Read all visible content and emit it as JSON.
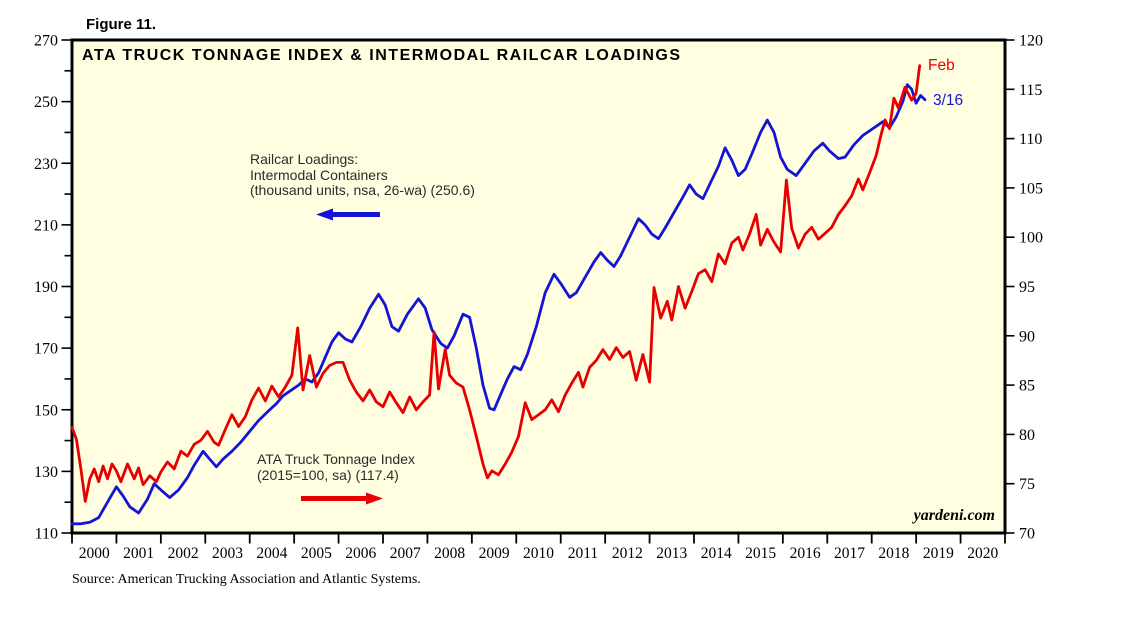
{
  "figure_label": "Figure 11.",
  "title": "ATA TRUCK TONNAGE INDEX & INTERMODAL RAILCAR LOADINGS",
  "watermark": "yardeni.com",
  "source_note": "Source: American Trucking Association and Atlantic Systems.",
  "colors": {
    "plot_background": "#fffee1",
    "border": "#000000",
    "railcar_line": "#1414d6",
    "truck_line": "#e80000",
    "axis_text": "#000000",
    "annotation_text": "#2b2b2b"
  },
  "annotations": {
    "railcar_label": {
      "line1": "Railcar Loadings:",
      "line2": "Intermodal Containers",
      "line3": "(thousand units, nsa, 26-wa) (250.6)"
    },
    "truck_label": {
      "line1": "ATA Truck Tonnage Index",
      "line2": "(2015=100, sa) (117.4)"
    },
    "feb_label": "Feb",
    "date_label": "3/16"
  },
  "chart_data": {
    "type": "line",
    "title": "ATA TRUCK TONNAGE INDEX & INTERMODAL RAILCAR LOADINGS",
    "grid": false,
    "legend_position": "in-plot annotations with arrows",
    "x_axis": {
      "start": 2000,
      "end": 2021,
      "tick_labels": [
        "2000",
        "2001",
        "2002",
        "2003",
        "2004",
        "2005",
        "2006",
        "2007",
        "2008",
        "2009",
        "2010",
        "2011",
        "2012",
        "2013",
        "2014",
        "2015",
        "2016",
        "2017",
        "2018",
        "2019",
        "2020"
      ]
    },
    "left_axis": {
      "min": 110,
      "max": 270,
      "label_step": 20,
      "minor_step": 10,
      "labels": [
        270,
        250,
        230,
        210,
        190,
        170,
        150,
        130,
        110
      ],
      "series": "Railcar Loadings: Intermodal Containers (thousand units)"
    },
    "right_axis": {
      "min": 70,
      "max": 120,
      "label_step": 5,
      "labels": [
        120,
        115,
        110,
        105,
        100,
        95,
        90,
        85,
        80,
        75,
        70
      ],
      "series": "ATA Truck Tonnage Index (2015=100, sa)"
    },
    "series": [
      {
        "key": "railcar",
        "name": "Railcar Loadings: Intermodal Containers (thousand units, nsa, 26-wa)",
        "axis": "left",
        "color": "#1414d6",
        "latest_label": "3/16",
        "latest_value": 250.6,
        "points": [
          [
            2000.0,
            113
          ],
          [
            2000.2,
            113
          ],
          [
            2000.4,
            113.5
          ],
          [
            2000.6,
            115
          ],
          [
            2000.8,
            120
          ],
          [
            2001.0,
            125
          ],
          [
            2001.15,
            122
          ],
          [
            2001.3,
            118.5
          ],
          [
            2001.5,
            116.5
          ],
          [
            2001.7,
            121
          ],
          [
            2001.85,
            126
          ],
          [
            2002.0,
            124
          ],
          [
            2002.2,
            121.5
          ],
          [
            2002.4,
            124
          ],
          [
            2002.6,
            128
          ],
          [
            2002.75,
            132
          ],
          [
            2002.95,
            136.5
          ],
          [
            2003.1,
            134
          ],
          [
            2003.25,
            131.5
          ],
          [
            2003.4,
            134
          ],
          [
            2003.6,
            136.5
          ],
          [
            2003.8,
            139.5
          ],
          [
            2004.0,
            143
          ],
          [
            2004.2,
            146.5
          ],
          [
            2004.45,
            150
          ],
          [
            2004.6,
            152
          ],
          [
            2004.75,
            154.5
          ],
          [
            2004.95,
            156.5
          ],
          [
            2005.1,
            158
          ],
          [
            2005.25,
            160
          ],
          [
            2005.4,
            159
          ],
          [
            2005.55,
            162
          ],
          [
            2005.7,
            167
          ],
          [
            2005.85,
            172
          ],
          [
            2006.0,
            175
          ],
          [
            2006.15,
            173
          ],
          [
            2006.3,
            172
          ],
          [
            2006.5,
            177
          ],
          [
            2006.7,
            183
          ],
          [
            2006.9,
            187.5
          ],
          [
            2007.05,
            184
          ],
          [
            2007.2,
            177
          ],
          [
            2007.35,
            175.5
          ],
          [
            2007.55,
            181
          ],
          [
            2007.8,
            186
          ],
          [
            2007.95,
            183
          ],
          [
            2008.1,
            176
          ],
          [
            2008.3,
            171.5
          ],
          [
            2008.45,
            170
          ],
          [
            2008.6,
            174
          ],
          [
            2008.8,
            181
          ],
          [
            2008.95,
            180
          ],
          [
            2009.1,
            170
          ],
          [
            2009.25,
            158
          ],
          [
            2009.4,
            150.5
          ],
          [
            2009.5,
            150
          ],
          [
            2009.65,
            155
          ],
          [
            2009.8,
            160
          ],
          [
            2009.95,
            164
          ],
          [
            2010.1,
            163
          ],
          [
            2010.25,
            168
          ],
          [
            2010.45,
            177
          ],
          [
            2010.65,
            188
          ],
          [
            2010.85,
            194
          ],
          [
            2011.0,
            191
          ],
          [
            2011.2,
            186.5
          ],
          [
            2011.35,
            188
          ],
          [
            2011.55,
            193
          ],
          [
            2011.75,
            198
          ],
          [
            2011.9,
            201
          ],
          [
            2012.05,
            198.5
          ],
          [
            2012.2,
            196.5
          ],
          [
            2012.35,
            200
          ],
          [
            2012.55,
            206
          ],
          [
            2012.75,
            212
          ],
          [
            2012.9,
            210
          ],
          [
            2013.05,
            207
          ],
          [
            2013.2,
            205.5
          ],
          [
            2013.35,
            209
          ],
          [
            2013.55,
            214
          ],
          [
            2013.75,
            219
          ],
          [
            2013.9,
            223
          ],
          [
            2014.05,
            220
          ],
          [
            2014.2,
            218.5
          ],
          [
            2014.35,
            223
          ],
          [
            2014.55,
            229
          ],
          [
            2014.7,
            235
          ],
          [
            2014.85,
            231
          ],
          [
            2015.0,
            226
          ],
          [
            2015.15,
            228
          ],
          [
            2015.3,
            233
          ],
          [
            2015.5,
            240
          ],
          [
            2015.65,
            244
          ],
          [
            2015.8,
            240
          ],
          [
            2015.95,
            232
          ],
          [
            2016.1,
            228
          ],
          [
            2016.3,
            226
          ],
          [
            2016.5,
            230
          ],
          [
            2016.7,
            234
          ],
          [
            2016.9,
            236.5
          ],
          [
            2017.05,
            234
          ],
          [
            2017.25,
            231.5
          ],
          [
            2017.4,
            232
          ],
          [
            2017.6,
            236
          ],
          [
            2017.8,
            239
          ],
          [
            2017.95,
            240.5
          ],
          [
            2018.1,
            242
          ],
          [
            2018.25,
            243.5
          ],
          [
            2018.4,
            241.5
          ],
          [
            2018.55,
            245
          ],
          [
            2018.7,
            250
          ],
          [
            2018.8,
            255.5
          ],
          [
            2018.9,
            254
          ],
          [
            2019.0,
            249.5
          ],
          [
            2019.1,
            252
          ],
          [
            2019.2,
            250.6
          ]
        ]
      },
      {
        "key": "truck",
        "name": "ATA Truck Tonnage Index (2015=100, sa)",
        "axis": "right",
        "color": "#e80000",
        "latest_label": "Feb",
        "latest_value": 117.4,
        "points": [
          [
            2000.0,
            80.7
          ],
          [
            2000.1,
            79.5
          ],
          [
            2000.2,
            76.5
          ],
          [
            2000.3,
            73.2
          ],
          [
            2000.4,
            75.5
          ],
          [
            2000.5,
            76.5
          ],
          [
            2000.6,
            75.2
          ],
          [
            2000.7,
            76.8
          ],
          [
            2000.8,
            75.5
          ],
          [
            2000.9,
            77
          ],
          [
            2001.0,
            76.3
          ],
          [
            2001.1,
            75.2
          ],
          [
            2001.25,
            77
          ],
          [
            2001.4,
            75.5
          ],
          [
            2001.5,
            76.6
          ],
          [
            2001.6,
            74.9
          ],
          [
            2001.75,
            75.8
          ],
          [
            2001.9,
            75.2
          ],
          [
            2002.0,
            76.2
          ],
          [
            2002.15,
            77.2
          ],
          [
            2002.3,
            76.5
          ],
          [
            2002.45,
            78.3
          ],
          [
            2002.6,
            77.8
          ],
          [
            2002.75,
            79
          ],
          [
            2002.9,
            79.4
          ],
          [
            2003.05,
            80.3
          ],
          [
            2003.2,
            79.2
          ],
          [
            2003.3,
            78.9
          ],
          [
            2003.45,
            80.5
          ],
          [
            2003.6,
            82
          ],
          [
            2003.75,
            80.8
          ],
          [
            2003.9,
            81.8
          ],
          [
            2004.05,
            83.5
          ],
          [
            2004.2,
            84.7
          ],
          [
            2004.35,
            83.4
          ],
          [
            2004.5,
            84.9
          ],
          [
            2004.65,
            83.8
          ],
          [
            2004.8,
            84.8
          ],
          [
            2004.95,
            86
          ],
          [
            2005.08,
            90.8
          ],
          [
            2005.2,
            84.5
          ],
          [
            2005.35,
            88
          ],
          [
            2005.5,
            84.8
          ],
          [
            2005.65,
            86.2
          ],
          [
            2005.8,
            87
          ],
          [
            2005.95,
            87.3
          ],
          [
            2006.1,
            87.3
          ],
          [
            2006.25,
            85.5
          ],
          [
            2006.4,
            84.3
          ],
          [
            2006.55,
            83.4
          ],
          [
            2006.7,
            84.5
          ],
          [
            2006.85,
            83.3
          ],
          [
            2007.0,
            82.8
          ],
          [
            2007.15,
            84.3
          ],
          [
            2007.3,
            83.2
          ],
          [
            2007.45,
            82.2
          ],
          [
            2007.6,
            83.8
          ],
          [
            2007.75,
            82.5
          ],
          [
            2007.9,
            83.3
          ],
          [
            2008.05,
            84
          ],
          [
            2008.15,
            90.4
          ],
          [
            2008.25,
            84.6
          ],
          [
            2008.4,
            88.6
          ],
          [
            2008.5,
            86
          ],
          [
            2008.65,
            85.2
          ],
          [
            2008.8,
            84.8
          ],
          [
            2008.95,
            82.5
          ],
          [
            2009.1,
            79.8
          ],
          [
            2009.25,
            77
          ],
          [
            2009.35,
            75.6
          ],
          [
            2009.45,
            76.3
          ],
          [
            2009.6,
            75.9
          ],
          [
            2009.75,
            77
          ],
          [
            2009.9,
            78.2
          ],
          [
            2010.05,
            79.8
          ],
          [
            2010.2,
            83.2
          ],
          [
            2010.35,
            81.5
          ],
          [
            2010.5,
            82
          ],
          [
            2010.65,
            82.5
          ],
          [
            2010.8,
            83.5
          ],
          [
            2010.95,
            82.3
          ],
          [
            2011.1,
            84
          ],
          [
            2011.25,
            85.2
          ],
          [
            2011.4,
            86.3
          ],
          [
            2011.5,
            84.8
          ],
          [
            2011.65,
            86.8
          ],
          [
            2011.8,
            87.5
          ],
          [
            2011.95,
            88.6
          ],
          [
            2012.1,
            87.6
          ],
          [
            2012.25,
            88.8
          ],
          [
            2012.4,
            87.8
          ],
          [
            2012.55,
            88.4
          ],
          [
            2012.7,
            85.5
          ],
          [
            2012.85,
            88.1
          ],
          [
            2013.0,
            85.3
          ],
          [
            2013.1,
            94.9
          ],
          [
            2013.25,
            91.8
          ],
          [
            2013.4,
            93.5
          ],
          [
            2013.5,
            91.6
          ],
          [
            2013.65,
            95
          ],
          [
            2013.8,
            92.8
          ],
          [
            2013.95,
            94.5
          ],
          [
            2014.1,
            96.3
          ],
          [
            2014.25,
            96.7
          ],
          [
            2014.4,
            95.5
          ],
          [
            2014.55,
            98.3
          ],
          [
            2014.7,
            97.3
          ],
          [
            2014.85,
            99.4
          ],
          [
            2015.0,
            100
          ],
          [
            2015.1,
            98.7
          ],
          [
            2015.25,
            100.3
          ],
          [
            2015.4,
            102.3
          ],
          [
            2015.5,
            99.2
          ],
          [
            2015.65,
            100.8
          ],
          [
            2015.8,
            99.5
          ],
          [
            2015.95,
            98.5
          ],
          [
            2016.08,
            105.8
          ],
          [
            2016.2,
            100.9
          ],
          [
            2016.35,
            98.9
          ],
          [
            2016.5,
            100.3
          ],
          [
            2016.65,
            101
          ],
          [
            2016.8,
            99.8
          ],
          [
            2016.95,
            100.4
          ],
          [
            2017.1,
            101
          ],
          [
            2017.25,
            102.3
          ],
          [
            2017.4,
            103.2
          ],
          [
            2017.55,
            104.2
          ],
          [
            2017.7,
            105.9
          ],
          [
            2017.8,
            104.8
          ],
          [
            2017.95,
            106.5
          ],
          [
            2018.1,
            108.3
          ],
          [
            2018.2,
            110.2
          ],
          [
            2018.3,
            111.9
          ],
          [
            2018.4,
            111
          ],
          [
            2018.5,
            114.1
          ],
          [
            2018.6,
            113.1
          ],
          [
            2018.75,
            115.2
          ],
          [
            2018.9,
            113.9
          ],
          [
            2019.0,
            114.6
          ],
          [
            2019.08,
            117.4
          ]
        ]
      }
    ]
  }
}
